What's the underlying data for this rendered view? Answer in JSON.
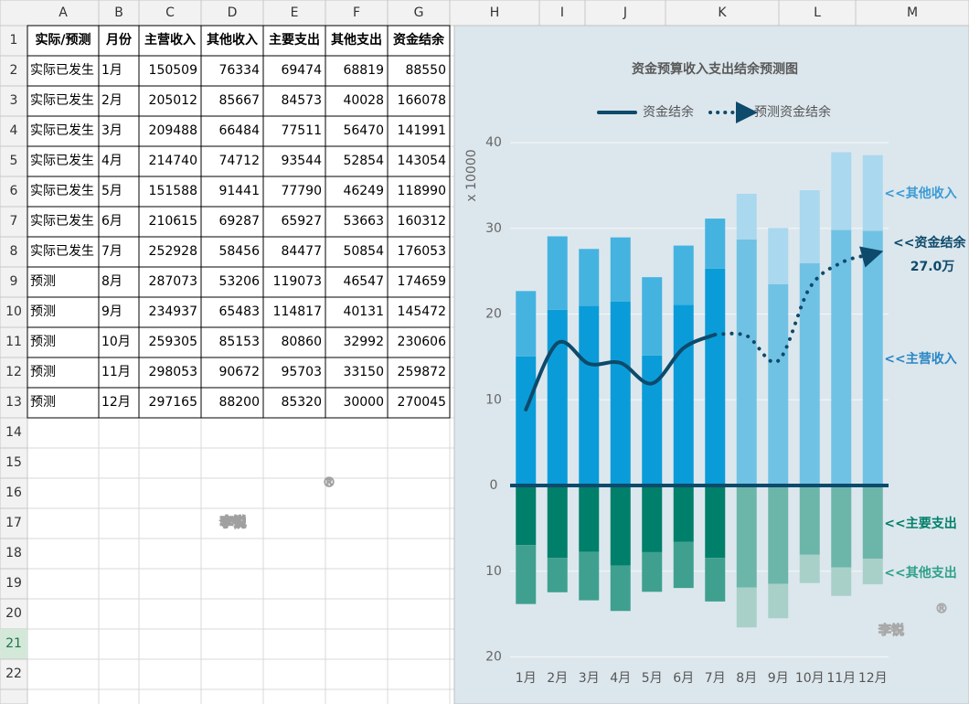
{
  "sheet": {
    "column_headers": [
      "A",
      "B",
      "C",
      "D",
      "E",
      "F",
      "G",
      "H",
      "I",
      "J",
      "K",
      "L",
      "M"
    ],
    "row_headers": [
      1,
      2,
      3,
      4,
      5,
      6,
      7,
      8,
      9,
      10,
      11,
      12,
      13,
      14,
      15,
      16,
      17,
      18,
      19,
      20,
      21,
      22
    ],
    "watermark": {
      "text": "李锐",
      "mark": "®"
    }
  },
  "table": {
    "columns": [
      "实际/预测",
      "月份",
      "主营收入",
      "其他收入",
      "主要支出",
      "其他支出",
      "资金结余"
    ],
    "rows": [
      [
        "实际已发生",
        "1月",
        150509,
        76334,
        69474,
        68819,
        88550
      ],
      [
        "实际已发生",
        "2月",
        205012,
        85667,
        84573,
        40028,
        166078
      ],
      [
        "实际已发生",
        "3月",
        209488,
        66484,
        77511,
        56470,
        141991
      ],
      [
        "实际已发生",
        "4月",
        214740,
        74712,
        93544,
        52854,
        143054
      ],
      [
        "实际已发生",
        "5月",
        151588,
        91441,
        77790,
        46249,
        118990
      ],
      [
        "实际已发生",
        "6月",
        210615,
        69287,
        65927,
        53663,
        160312
      ],
      [
        "实际已发生",
        "7月",
        252928,
        58456,
        84477,
        50854,
        176053
      ],
      [
        "预测",
        "8月",
        287073,
        53206,
        119073,
        46547,
        174659
      ],
      [
        "预测",
        "9月",
        234937,
        65483,
        114817,
        40131,
        145472
      ],
      [
        "预测",
        "10月",
        259305,
        85153,
        80860,
        32992,
        230606
      ],
      [
        "预测",
        "11月",
        298053,
        90672,
        95703,
        33150,
        259872
      ],
      [
        "预测",
        "12月",
        297165,
        88200,
        85320,
        30000,
        270045
      ]
    ]
  },
  "chart_data": {
    "type": "bar",
    "title": "资金预算收入支出结余预测图",
    "y_label": "x 10000",
    "categories": [
      "1月",
      "2月",
      "3月",
      "4月",
      "5月",
      "6月",
      "7月",
      "8月",
      "9月",
      "10月",
      "11月",
      "12月"
    ],
    "ylim": [
      -20,
      40
    ],
    "yticks": [
      {
        "value": -20,
        "label": "20"
      },
      {
        "value": -10,
        "label": "10"
      },
      0,
      10,
      20,
      30,
      40
    ],
    "grid": true,
    "bars": [
      {
        "colors": [
          "#0a9cd8",
          "#0a9cd8",
          "#0a9cd8",
          "#0a9cd8",
          "#0a9cd8",
          "#0a9cd8",
          "#0a9cd8",
          "#70c2e4",
          "#70c2e4",
          "#70c2e4",
          "#70c2e4",
          "#70c2e4"
        ],
        "values": [
          15.0509,
          20.5012,
          20.9488,
          21.474,
          15.1588,
          21.0615,
          25.2928,
          28.7073,
          23.4937,
          25.9305,
          29.8053,
          29.7165
        ]
      },
      {
        "colors": [
          "#45b3e0",
          "#45b3e0",
          "#45b3e0",
          "#45b3e0",
          "#45b3e0",
          "#45b3e0",
          "#45b3e0",
          "#aad8ee",
          "#aad8ee",
          "#aad8ee",
          "#aad8ee",
          "#aad8ee"
        ],
        "values": [
          7.6334,
          8.5667,
          6.6484,
          7.4712,
          9.1441,
          6.9287,
          5.8456,
          5.3206,
          6.5483,
          8.5153,
          9.0672,
          8.82
        ]
      },
      {
        "colors": [
          "#007f6a",
          "#007f6a",
          "#007f6a",
          "#007f6a",
          "#007f6a",
          "#007f6a",
          "#007f6a",
          "#6cb6a9",
          "#6cb6a9",
          "#6cb6a9",
          "#6cb6a9",
          "#6cb6a9"
        ],
        "values": [
          -6.9474,
          -8.4573,
          -7.7511,
          -9.3544,
          -7.779,
          -6.5927,
          -8.4477,
          -11.9073,
          -11.4817,
          -8.086,
          -9.5703,
          -8.532
        ]
      },
      {
        "colors": [
          "#3fa08f",
          "#3fa08f",
          "#3fa08f",
          "#3fa08f",
          "#3fa08f",
          "#3fa08f",
          "#3fa08f",
          "#a8d0c9",
          "#a8d0c9",
          "#a8d0c9",
          "#a8d0c9",
          "#a8d0c9"
        ],
        "values": [
          -6.8819,
          -4.0028,
          -5.647,
          -5.2854,
          -4.6249,
          -5.3663,
          -5.0854,
          -4.6547,
          -4.0131,
          -3.2992,
          -3.315,
          -3.0
        ]
      }
    ],
    "series": [
      {
        "name": "资金结余",
        "color": "#0d4a6b",
        "style": "solid",
        "values": [
          8.855,
          16.6078,
          14.1991,
          14.3054,
          11.899,
          16.0312,
          17.6053,
          null,
          null,
          null,
          null,
          null
        ]
      },
      {
        "name": "预测资金结余",
        "color": "#0d4a6b",
        "style": "dotted",
        "values": [
          null,
          null,
          null,
          null,
          null,
          null,
          17.6053,
          17.4659,
          14.5472,
          23.0606,
          25.9872,
          27.0045
        ]
      }
    ],
    "annotations": [
      "<<其他收入",
      "<<资金结余",
      "27.0万",
      "<<主营收入",
      "<<主要支出",
      "<<其他支出"
    ]
  }
}
